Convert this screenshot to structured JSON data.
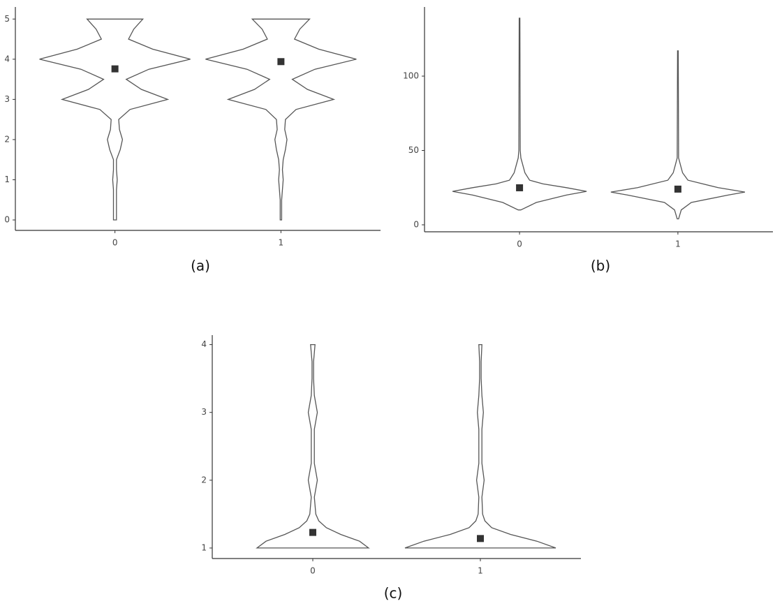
{
  "chart_data": [
    {
      "type": "violin",
      "label": "(a)",
      "categories": [
        "0",
        "1"
      ],
      "ylim": [
        -0.26,
        5.3
      ],
      "yticks": [
        0,
        1,
        2,
        3,
        4,
        5
      ],
      "violins": [
        {
          "y": [
            0,
            0.25,
            0.5,
            0.75,
            1,
            1.25,
            1.5,
            1.75,
            2,
            2.25,
            2.5,
            2.75,
            3,
            3.25,
            3.5,
            3.75,
            4,
            4.25,
            4.5,
            4.75,
            5
          ],
          "density": [
            0.02,
            0.02,
            0.02,
            0.02,
            0.03,
            0.02,
            0.02,
            0.07,
            0.1,
            0.06,
            0.05,
            0.2,
            0.7,
            0.35,
            0.15,
            0.45,
            1.0,
            0.5,
            0.18,
            0.25,
            0.37
          ]
        },
        {
          "y": [
            0,
            0.25,
            0.5,
            0.75,
            1,
            1.25,
            1.5,
            1.75,
            2,
            2.25,
            2.5,
            2.75,
            3,
            3.25,
            3.5,
            3.75,
            4,
            4.25,
            4.5,
            4.75,
            5
          ],
          "density": [
            0.01,
            0.01,
            0.01,
            0.02,
            0.03,
            0.02,
            0.03,
            0.06,
            0.08,
            0.05,
            0.06,
            0.2,
            0.7,
            0.35,
            0.15,
            0.45,
            1.0,
            0.5,
            0.18,
            0.25,
            0.38
          ]
        }
      ],
      "means": [
        3.76,
        3.94
      ]
    },
    {
      "type": "violin",
      "label": "(b)",
      "categories": [
        "0",
        "1"
      ],
      "ylim": [
        -4.7,
        146.5
      ],
      "yticks": [
        0,
        50,
        100
      ],
      "violins": [
        {
          "y": [
            10,
            15,
            20,
            22.5,
            25,
            27.5,
            30,
            35,
            40,
            45,
            50,
            139
          ],
          "density": [
            0.02,
            0.25,
            0.7,
            1.0,
            0.7,
            0.35,
            0.15,
            0.08,
            0.05,
            0.02,
            0.01,
            0.005
          ]
        },
        {
          "y": [
            4,
            10,
            15,
            20,
            22,
            25,
            30,
            35,
            40,
            45,
            117
          ],
          "density": [
            0.01,
            0.05,
            0.2,
            0.75,
            1.0,
            0.6,
            0.15,
            0.07,
            0.04,
            0.01,
            0.005
          ]
        }
      ],
      "means": [
        24.9,
        24
      ]
    },
    {
      "type": "violin",
      "label": "(c)",
      "categories": [
        "0",
        "1"
      ],
      "ylim": [
        0.845,
        4.14
      ],
      "yticks": [
        1,
        2,
        3,
        4
      ],
      "violins": [
        {
          "y": [
            1,
            1.1,
            1.2,
            1.3,
            1.4,
            1.5,
            1.75,
            2,
            2.25,
            2.5,
            2.75,
            3,
            3.25,
            3.5,
            3.75,
            4
          ],
          "density": [
            0.74,
            0.62,
            0.37,
            0.18,
            0.08,
            0.04,
            0.02,
            0.06,
            0.02,
            0.02,
            0.02,
            0.06,
            0.02,
            0.01,
            0.01,
            0.03
          ]
        },
        {
          "y": [
            1,
            1.1,
            1.2,
            1.3,
            1.4,
            1.5,
            1.75,
            2,
            2.25,
            2.5,
            2.75,
            3,
            3.25,
            3.5,
            3.75,
            4
          ],
          "density": [
            1.0,
            0.75,
            0.4,
            0.15,
            0.06,
            0.03,
            0.02,
            0.05,
            0.02,
            0.02,
            0.02,
            0.04,
            0.02,
            0.01,
            0.01,
            0.02
          ]
        }
      ],
      "means": [
        1.23,
        1.14
      ]
    }
  ]
}
